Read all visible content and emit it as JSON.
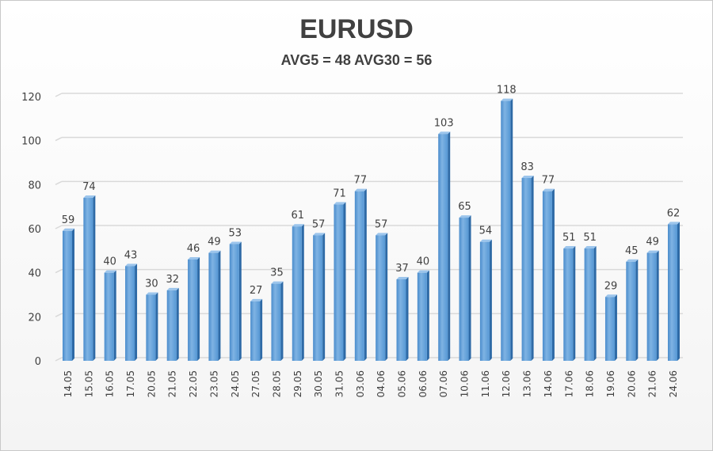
{
  "chart_data": {
    "type": "bar",
    "title": "EURUSD",
    "subtitle": "AVG5 = 48 AVG30 = 56",
    "categories": [
      "14.05",
      "15.05",
      "16.05",
      "17.05",
      "20.05",
      "21.05",
      "22.05",
      "23.05",
      "24.05",
      "27.05",
      "28.05",
      "29.05",
      "30.05",
      "31.05",
      "03.06",
      "04.06",
      "05.06",
      "06.06",
      "07.06",
      "10.06",
      "11.06",
      "12.06",
      "13.06",
      "14.06",
      "17.06",
      "18.06",
      "19.06",
      "20.06",
      "21.06",
      "24.06"
    ],
    "values": [
      59,
      74,
      40,
      43,
      30,
      32,
      46,
      49,
      53,
      27,
      35,
      61,
      57,
      71,
      77,
      57,
      37,
      40,
      103,
      65,
      54,
      118,
      83,
      77,
      51,
      51,
      29,
      45,
      49,
      62
    ],
    "ylim": [
      0,
      120
    ],
    "yticks": [
      0,
      20,
      40,
      60,
      80,
      100,
      120
    ],
    "grid": true,
    "data_labels": true,
    "bar_color": "#5b9bd5",
    "xlabel": "",
    "ylabel": ""
  }
}
